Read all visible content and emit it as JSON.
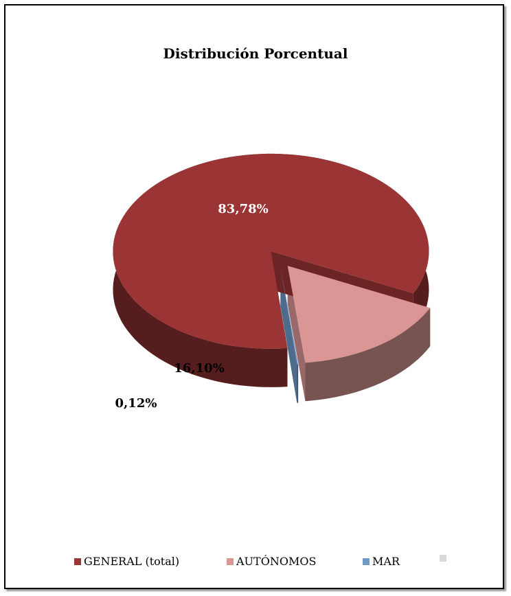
{
  "chart_data": {
    "type": "pie",
    "title": "Distribución Porcentual",
    "categories": [
      "GENERAL (total)",
      "AUTÓNOMOS",
      "MAR",
      ""
    ],
    "values": [
      83.78,
      16.1,
      0.12,
      0
    ],
    "labels": [
      "83,78%",
      "16,10%",
      "0,12%",
      ""
    ],
    "colors": [
      "#9b3434",
      "#d99695",
      "#7099c8",
      "#d9d9d9"
    ],
    "legend": "bottom"
  }
}
